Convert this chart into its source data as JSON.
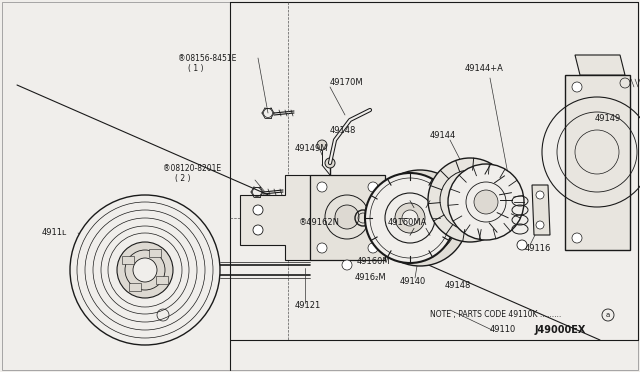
{
  "background_color": "#f0eeeb",
  "line_color": "#1a1a1a",
  "note_text": "NOTE ; PARTS CODE 49110K .........",
  "note_circle": "a",
  "diagram_code": "J49000EX",
  "labels": {
    "bolt1_id": "®08156-8451E",
    "bolt1_sub": "( 1 )",
    "bolt2_id": "®08120-8201E",
    "bolt2_sub": "( 2 )",
    "p49111": "4911ʟ",
    "p49121": "49121",
    "p49170M": "49170M",
    "p49149M": "49149M",
    "p49148a": "49148",
    "p49162N": "®49162N",
    "p49160MA": "49160MA",
    "p49160M": "49160M",
    "p49162M": "4916₂M",
    "p49144A": "49144+A",
    "p49144": "49144",
    "p49140": "49140",
    "p49148b": "49148",
    "p49116": "49116",
    "p49149": "49149",
    "p49110": "49110"
  }
}
